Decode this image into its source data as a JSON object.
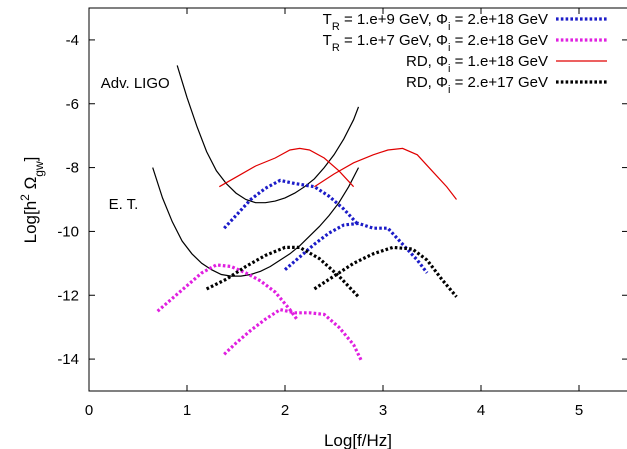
{
  "chart_data": {
    "type": "line",
    "title": "",
    "xlabel": "Log[f/Hz]",
    "ylabel": {
      "pre": "Log[h",
      "sup": "2",
      "omega": " Ω",
      "sub": "gw",
      "post": "]"
    },
    "xlim": [
      0,
      5.5
    ],
    "ylim": [
      -15,
      -3
    ],
    "xticks": [
      0,
      1,
      2,
      3,
      4,
      5
    ],
    "yticks": [
      -14,
      -12,
      -10,
      -8,
      -6,
      -4
    ],
    "grid": false,
    "legend_position": "top-right",
    "legend": [
      {
        "parts": [
          {
            "t": "T"
          },
          {
            "t": "R",
            "sub": true
          },
          {
            "t": " = 1.e+9 GeV, Φ"
          },
          {
            "t": "i",
            "sub": true
          },
          {
            "t": " = 2.e+18 GeV"
          }
        ],
        "series": "s1"
      },
      {
        "parts": [
          {
            "t": "T"
          },
          {
            "t": "R",
            "sub": true
          },
          {
            "t": " = 1.e+7 GeV, Φ"
          },
          {
            "t": "i",
            "sub": true
          },
          {
            "t": " = 2.e+18 GeV"
          }
        ],
        "series": "s2"
      },
      {
        "parts": [
          {
            "t": "RD, Φ"
          },
          {
            "t": "i",
            "sub": true
          },
          {
            "t": " = 1.e+18 GeV"
          }
        ],
        "series": "s3"
      },
      {
        "parts": [
          {
            "t": "RD, Φ"
          },
          {
            "t": "i",
            "sub": true
          },
          {
            "t": " = 2.e+17 GeV"
          }
        ],
        "series": "s4"
      }
    ],
    "annotations": [
      {
        "text": "Adv. LIGO",
        "x": 0.12,
        "y": -5.5
      },
      {
        "text": "E. T.",
        "x": 0.2,
        "y": -9.3
      }
    ],
    "sensitivity_curves": [
      {
        "id": "adv-ligo",
        "color": "#000000",
        "x": [
          0.9,
          1.0,
          1.1,
          1.2,
          1.3,
          1.4,
          1.5,
          1.6,
          1.7,
          1.8,
          1.9,
          2.0,
          2.1,
          2.2,
          2.3,
          2.4,
          2.5,
          2.6,
          2.7,
          2.75
        ],
        "y": [
          -4.8,
          -5.8,
          -6.7,
          -7.5,
          -8.1,
          -8.5,
          -8.8,
          -9.0,
          -9.1,
          -9.1,
          -9.05,
          -8.95,
          -8.8,
          -8.6,
          -8.35,
          -8.0,
          -7.6,
          -7.1,
          -6.5,
          -6.1
        ]
      },
      {
        "id": "einstein-telescope",
        "color": "#000000",
        "x": [
          0.65,
          0.75,
          0.85,
          0.95,
          1.05,
          1.15,
          1.25,
          1.35,
          1.45,
          1.55,
          1.65,
          1.75,
          1.85,
          1.95,
          2.05,
          2.15,
          2.25,
          2.35,
          2.45,
          2.55,
          2.65,
          2.75
        ],
        "y": [
          -8.0,
          -8.95,
          -9.7,
          -10.3,
          -10.7,
          -11.0,
          -11.2,
          -11.35,
          -11.4,
          -11.4,
          -11.35,
          -11.25,
          -11.1,
          -10.9,
          -10.7,
          -10.45,
          -10.15,
          -9.85,
          -9.5,
          -9.1,
          -8.6,
          -8.0
        ]
      }
    ],
    "series": [
      {
        "id": "s1",
        "color": "#1c1cc8",
        "style": "dotted-bold",
        "segments": [
          {
            "x": [
              1.38,
              1.5,
              1.65,
              1.8,
              1.95,
              2.1,
              2.3,
              2.45,
              2.6,
              2.75
            ],
            "y": [
              -9.9,
              -9.5,
              -9.0,
              -8.65,
              -8.4,
              -8.5,
              -8.6,
              -8.9,
              -9.3,
              -9.8
            ]
          },
          {
            "x": [
              2.0,
              2.15,
              2.3,
              2.45,
              2.6,
              2.75,
              2.9,
              3.05,
              3.2,
              3.35,
              3.45
            ],
            "y": [
              -11.2,
              -10.8,
              -10.4,
              -10.05,
              -9.8,
              -9.75,
              -9.9,
              -9.9,
              -10.4,
              -10.9,
              -11.3
            ]
          }
        ]
      },
      {
        "id": "s2",
        "color": "#e020e0",
        "style": "dotted-bold",
        "segments": [
          {
            "x": [
              0.7,
              0.85,
              1.0,
              1.15,
              1.3,
              1.45,
              1.6,
              1.75,
              1.9,
              2.05,
              2.12
            ],
            "y": [
              -12.5,
              -12.1,
              -11.7,
              -11.3,
              -11.05,
              -11.1,
              -11.3,
              -11.55,
              -11.9,
              -12.45,
              -12.75
            ]
          },
          {
            "x": [
              1.38,
              1.5,
              1.65,
              1.8,
              1.95,
              2.1,
              2.25,
              2.4,
              2.55,
              2.7,
              2.78
            ],
            "y": [
              -13.85,
              -13.5,
              -13.1,
              -12.75,
              -12.45,
              -12.55,
              -12.55,
              -12.6,
              -13.0,
              -13.55,
              -14.05
            ]
          }
        ]
      },
      {
        "id": "s3",
        "color": "#e00000",
        "style": "solid",
        "segments": [
          {
            "x": [
              1.33,
              1.5,
              1.7,
              1.9,
              2.05,
              2.15,
              2.25,
              2.4,
              2.55,
              2.7
            ],
            "y": [
              -8.6,
              -8.3,
              -7.95,
              -7.7,
              -7.45,
              -7.4,
              -7.45,
              -7.7,
              -8.1,
              -8.6
            ]
          },
          {
            "x": [
              2.3,
              2.5,
              2.7,
              2.9,
              3.05,
              3.2,
              3.35,
              3.5,
              3.65,
              3.75
            ],
            "y": [
              -8.6,
              -8.2,
              -7.85,
              -7.6,
              -7.45,
              -7.4,
              -7.6,
              -8.1,
              -8.6,
              -9.0
            ]
          }
        ]
      },
      {
        "id": "s4",
        "color": "#000000",
        "style": "dotted-bold",
        "segments": [
          {
            "x": [
              1.2,
              1.4,
              1.6,
              1.8,
              2.0,
              2.15,
              2.35,
              2.55,
              2.75
            ],
            "y": [
              -11.8,
              -11.5,
              -11.1,
              -10.75,
              -10.5,
              -10.5,
              -10.85,
              -11.4,
              -12.05
            ]
          },
          {
            "x": [
              2.3,
              2.5,
              2.7,
              2.9,
              3.1,
              3.3,
              3.45,
              3.6,
              3.75
            ],
            "y": [
              -11.8,
              -11.4,
              -11.0,
              -10.7,
              -10.5,
              -10.55,
              -10.9,
              -11.5,
              -12.05
            ]
          }
        ]
      }
    ]
  }
}
